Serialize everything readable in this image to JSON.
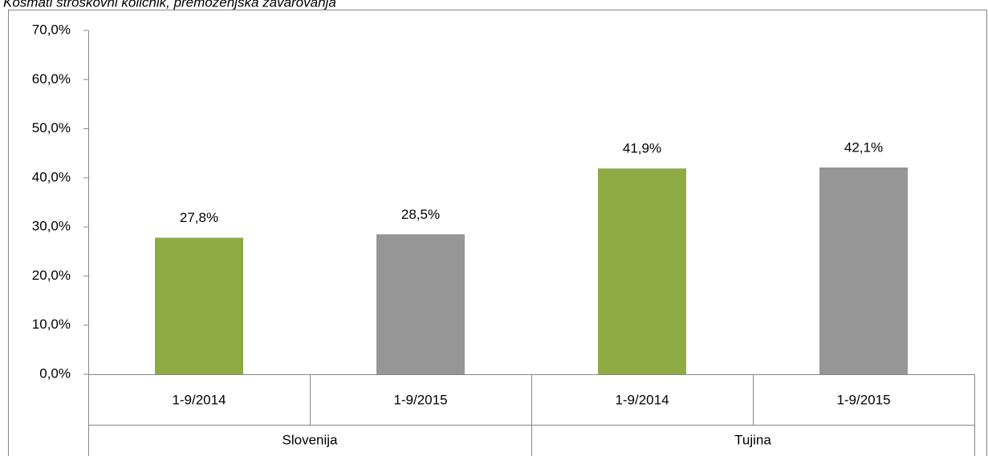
{
  "chart_data": {
    "type": "bar",
    "title": "Kosmati stroškovni količnik, premoženjska zavarovanja",
    "categories": [
      "1-9/2014",
      "1-9/2015",
      "1-9/2014",
      "1-9/2015"
    ],
    "groups": [
      "Slovenija",
      "Tujina"
    ],
    "values": [
      27.8,
      28.5,
      41.9,
      42.1
    ],
    "value_labels": [
      "27,8%",
      "28,5%",
      "41,9%",
      "42,1%"
    ],
    "colors": [
      "#8eaa42",
      "#969696",
      "#8eaa42",
      "#969696"
    ],
    "ylim": [
      0,
      70
    ],
    "yticks": [
      {
        "value": 0,
        "label": "0,0%"
      },
      {
        "value": 10,
        "label": "10,0%"
      },
      {
        "value": 20,
        "label": "20,0%"
      },
      {
        "value": 30,
        "label": "30,0%"
      },
      {
        "value": 40,
        "label": "40,0%"
      },
      {
        "value": 50,
        "label": "50,0%"
      },
      {
        "value": 60,
        "label": "60,0%"
      },
      {
        "value": 70,
        "label": "70,0%"
      }
    ],
    "grid": false
  }
}
